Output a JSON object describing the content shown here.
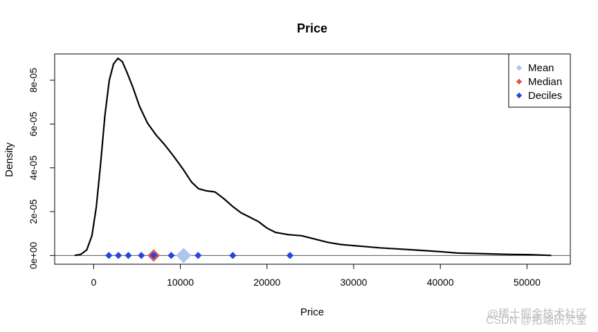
{
  "chart_data": {
    "type": "line",
    "title": "Price",
    "xlabel": "Price",
    "ylabel": "Density",
    "xlim": [
      -4500,
      55000
    ],
    "ylim": [
      -4e-06,
      9.2e-05
    ],
    "x_ticks": [
      0,
      10000,
      20000,
      30000,
      40000,
      50000
    ],
    "x_tick_labels": [
      "0",
      "10000",
      "20000",
      "30000",
      "40000",
      "50000"
    ],
    "y_ticks": [
      0,
      2e-05,
      4e-05,
      6e-05,
      8e-05
    ],
    "y_tick_labels": [
      "0e+00",
      "2e-05",
      "4e-05",
      "6e-05",
      "8e-05"
    ],
    "grid": false,
    "baseline_y": 0,
    "series": [
      {
        "role": "density",
        "color": "#000000",
        "points": [
          [
            -2200,
            0.0
          ],
          [
            -1500,
            5e-07
          ],
          [
            -800,
            2.5e-06
          ],
          [
            -200,
            9e-06
          ],
          [
            300,
            2.2e-05
          ],
          [
            800,
            4.2e-05
          ],
          [
            1300,
            6.4e-05
          ],
          [
            1800,
            8e-05
          ],
          [
            2300,
            8.75e-05
          ],
          [
            2800,
            9e-05
          ],
          [
            3300,
            8.85e-05
          ],
          [
            3800,
            8.4e-05
          ],
          [
            4500,
            7.7e-05
          ],
          [
            5300,
            6.8e-05
          ],
          [
            6200,
            6.05e-05
          ],
          [
            7200,
            5.5e-05
          ],
          [
            8200,
            5.05e-05
          ],
          [
            9200,
            4.55e-05
          ],
          [
            10300,
            3.95e-05
          ],
          [
            11300,
            3.35e-05
          ],
          [
            12100,
            3.05e-05
          ],
          [
            13000,
            2.95e-05
          ],
          [
            14000,
            2.9e-05
          ],
          [
            15000,
            2.6e-05
          ],
          [
            16000,
            2.25e-05
          ],
          [
            17000,
            1.95e-05
          ],
          [
            18000,
            1.75e-05
          ],
          [
            19000,
            1.55e-05
          ],
          [
            20000,
            1.25e-05
          ],
          [
            21000,
            1.05e-05
          ],
          [
            22500,
            9.5e-06
          ],
          [
            24000,
            9e-06
          ],
          [
            25500,
            7.5e-06
          ],
          [
            27000,
            6e-06
          ],
          [
            28500,
            5e-06
          ],
          [
            30000,
            4.5e-06
          ],
          [
            31500,
            4e-06
          ],
          [
            33000,
            3.5e-06
          ],
          [
            35000,
            3e-06
          ],
          [
            37000,
            2.5e-06
          ],
          [
            39000,
            2e-06
          ],
          [
            40500,
            1.6e-06
          ],
          [
            42000,
            1.1e-06
          ],
          [
            44000,
            9e-07
          ],
          [
            46000,
            7e-07
          ],
          [
            48000,
            5e-07
          ],
          [
            50000,
            4e-07
          ],
          [
            51500,
            2e-07
          ],
          [
            52800,
            0.0
          ]
        ]
      }
    ],
    "markers": {
      "mean": {
        "name": "Mean",
        "x": 10380,
        "color": "#aec6ef"
      },
      "median": {
        "name": "Median",
        "x": 6920,
        "color": "#e0574f"
      },
      "deciles": {
        "name": "Deciles",
        "values": [
          1750,
          2850,
          4000,
          5500,
          6920,
          8950,
          12050,
          16050,
          22650
        ],
        "color": "#2746e0"
      }
    },
    "legend": {
      "placement": "top-right",
      "entries": [
        {
          "label": "Mean",
          "color": "#aec6ef"
        },
        {
          "label": "Median",
          "color": "#e0574f"
        },
        {
          "label": "Deciles",
          "color": "#2746e0"
        }
      ]
    }
  },
  "watermark": {
    "line1": "@稀土掘金技术社区",
    "line2": "CSDN @拓端研究室"
  }
}
